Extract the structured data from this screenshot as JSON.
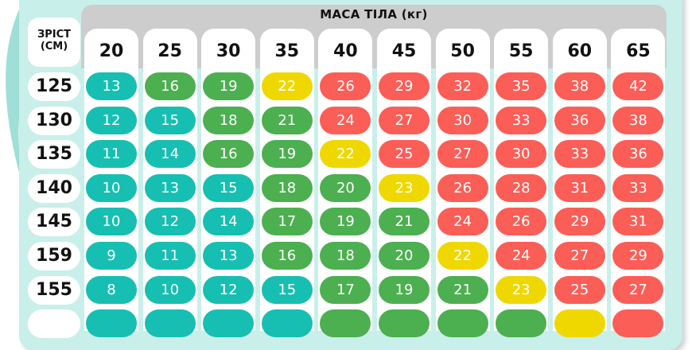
{
  "header": {
    "title": "МАСА ТІЛА (кг)",
    "height_title_line1": "ЗРІСТ",
    "height_title_line2": "(СМ)"
  },
  "colors": {
    "underweight": "#16bfb1",
    "normal": "#4caf50",
    "overweight": "#efd800",
    "obese": "#fb5e56",
    "background": "#c9efea",
    "header_gray": "#cdcdcd"
  },
  "chart_data": {
    "type": "table",
    "title": "МАСА ТІЛА (кг)",
    "xlabel": "МАСА ТІЛА (кг)",
    "ylabel": "ЗРІСТ (СМ)",
    "columns": [
      "20",
      "25",
      "30",
      "35",
      "40",
      "45",
      "50",
      "55",
      "60",
      "65"
    ],
    "rows": [
      "125",
      "130",
      "135",
      "140",
      "145",
      "159",
      "155"
    ],
    "values": [
      [
        13,
        16,
        19,
        22,
        26,
        29,
        32,
        35,
        38,
        42
      ],
      [
        12,
        15,
        18,
        21,
        24,
        27,
        30,
        33,
        36,
        38
      ],
      [
        11,
        14,
        16,
        19,
        22,
        25,
        27,
        30,
        33,
        36
      ],
      [
        10,
        13,
        15,
        18,
        20,
        23,
        26,
        28,
        31,
        33
      ],
      [
        10,
        12,
        14,
        17,
        19,
        21,
        24,
        26,
        29,
        31
      ],
      [
        9,
        11,
        13,
        16,
        18,
        20,
        22,
        24,
        27,
        29
      ],
      [
        8,
        10,
        12,
        15,
        17,
        19,
        21,
        23,
        25,
        27
      ]
    ],
    "categories_color": [
      [
        "teal",
        "green",
        "green",
        "yellow",
        "red",
        "red",
        "red",
        "red",
        "red",
        "red"
      ],
      [
        "teal",
        "teal",
        "green",
        "green",
        "red",
        "red",
        "red",
        "red",
        "red",
        "red"
      ],
      [
        "teal",
        "teal",
        "green",
        "green",
        "yellow",
        "red",
        "red",
        "red",
        "red",
        "red"
      ],
      [
        "teal",
        "teal",
        "teal",
        "green",
        "green",
        "yellow",
        "red",
        "red",
        "red",
        "red"
      ],
      [
        "teal",
        "teal",
        "teal",
        "green",
        "green",
        "green",
        "red",
        "red",
        "red",
        "red"
      ],
      [
        "teal",
        "teal",
        "teal",
        "green",
        "green",
        "green",
        "yellow",
        "red",
        "red",
        "red"
      ],
      [
        "teal",
        "teal",
        "teal",
        "teal",
        "green",
        "green",
        "green",
        "yellow",
        "red",
        "red"
      ]
    ],
    "partial_next_row_colors": [
      "teal",
      "teal",
      "teal",
      "teal",
      "green",
      "green",
      "green",
      "green",
      "yellow",
      "red"
    ]
  }
}
